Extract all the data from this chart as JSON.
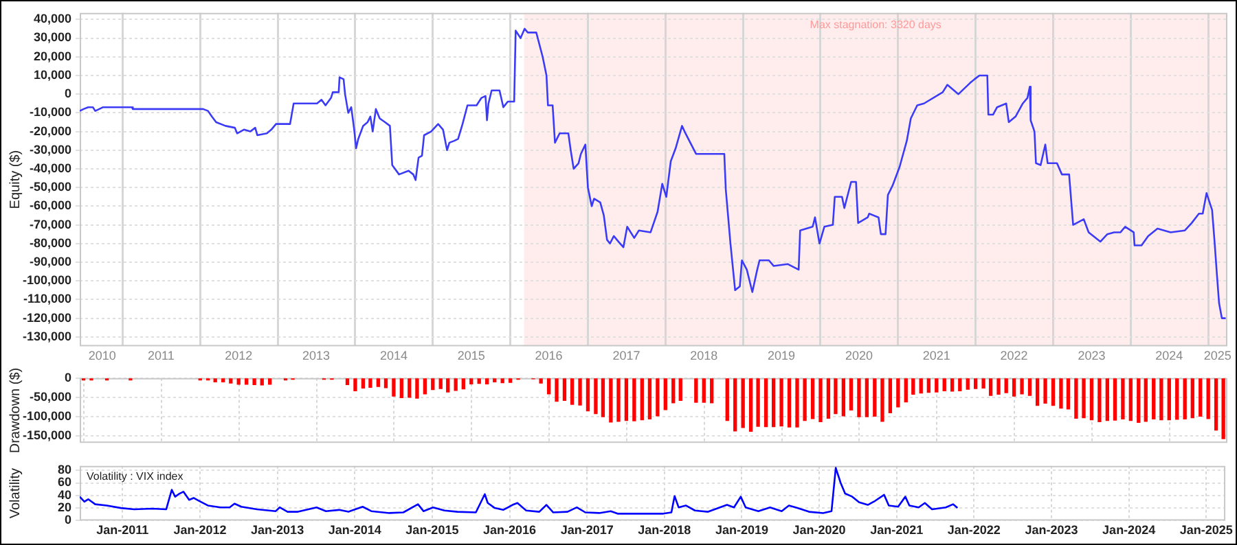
{
  "chart_data": [
    {
      "type": "line",
      "ylabel": "Equity ($)",
      "marker": "none",
      "legend": false,
      "grid": true,
      "x": [
        "2010-06-13",
        "2010-07-01",
        "2010-07-23",
        "2010-08-14",
        "2010-08-25",
        "2010-09-13",
        "2010-10-01",
        "2011-02-14",
        "2011-02-18",
        "2012-01-15",
        "2012-02-07",
        "2012-02-25",
        "2012-03-17",
        "2012-04-30",
        "2012-06-13",
        "2012-06-24",
        "2012-07-26",
        "2012-08-25",
        "2012-09-17",
        "2012-09-27",
        "2012-11-11",
        "2012-12-02",
        "2012-12-24",
        "2013-02-28",
        "2013-03-17",
        "2013-07-05",
        "2013-07-26",
        "2013-08-14",
        "2013-09-09",
        "2013-09-17",
        "2013-10-15",
        "2013-10-19",
        "2013-11-07",
        "2013-11-14",
        "2013-11-29",
        "2013-12-13",
        "2013-12-27",
        "2014-01-05",
        "2014-01-15",
        "2014-02-07",
        "2014-02-28",
        "2014-03-13",
        "2014-03-24",
        "2014-04-08",
        "2014-04-26",
        "2014-05-21",
        "2014-06-13",
        "2014-06-24",
        "2014-07-26",
        "2014-09-09",
        "2014-10-01",
        "2014-10-12",
        "2014-10-26",
        "2014-11-11",
        "2014-11-21",
        "2014-12-24",
        "2015-01-26",
        "2015-02-18",
        "2015-03-09",
        "2015-03-20",
        "2015-04-12",
        "2015-04-30",
        "2015-05-21",
        "2015-06-13",
        "2015-07-26",
        "2015-08-18",
        "2015-09-06",
        "2015-09-13",
        "2015-09-20",
        "2015-10-05",
        "2015-11-11",
        "2015-11-29",
        "2015-12-20",
        "2016-01-19",
        "2016-01-26",
        "2016-02-18",
        "2016-03-09",
        "2016-03-24",
        "2016-05-03",
        "2016-06-02",
        "2016-06-20",
        "2016-06-27",
        "2016-07-19",
        "2016-07-30",
        "2016-08-21",
        "2016-10-01",
        "2016-10-12",
        "2016-10-26",
        "2016-11-18",
        "2016-11-29",
        "2016-12-20",
        "2017-01-01",
        "2017-01-19",
        "2017-01-30",
        "2017-02-28",
        "2017-03-17",
        "2017-04-01",
        "2017-04-15",
        "2017-05-03",
        "2017-05-25",
        "2017-06-17",
        "2017-07-05",
        "2017-08-07",
        "2017-08-29",
        "2017-10-23",
        "2017-11-25",
        "2017-12-17",
        "2018-01-05",
        "2018-01-26",
        "2018-02-18",
        "2018-03-20",
        "2018-04-01",
        "2018-05-25",
        "2018-07-26",
        "2018-10-05",
        "2018-10-12",
        "2018-11-03",
        "2018-11-25",
        "2018-12-17",
        "2018-12-27",
        "2019-01-19",
        "2019-02-14",
        "2019-03-09",
        "2019-03-20",
        "2019-05-03",
        "2019-05-25",
        "2019-07-30",
        "2019-09-20",
        "2019-09-27",
        "2019-11-25",
        "2019-12-06",
        "2019-12-27",
        "2020-01-19",
        "2020-02-28",
        "2020-03-09",
        "2020-04-12",
        "2020-04-23",
        "2020-05-25",
        "2020-06-17",
        "2020-06-27",
        "2020-08-11",
        "2020-08-18",
        "2020-10-01",
        "2020-10-12",
        "2020-11-03",
        "2020-11-14",
        "2020-12-06",
        "2021-01-08",
        "2021-02-11",
        "2021-03-02",
        "2021-04-01",
        "2021-05-03",
        "2021-07-30",
        "2021-08-21",
        "2021-10-12",
        "2021-12-06",
        "2021-12-27",
        "2022-01-19",
        "2022-02-25",
        "2022-03-02",
        "2022-03-24",
        "2022-04-12",
        "2022-05-25",
        "2022-06-06",
        "2022-07-08",
        "2022-08-11",
        "2022-09-02",
        "2022-09-13",
        "2022-09-17",
        "2022-10-05",
        "2022-10-12",
        "2022-11-03",
        "2022-11-25",
        "2022-12-06",
        "2023-01-19",
        "2023-02-11",
        "2023-03-17",
        "2023-04-05",
        "2023-05-25",
        "2023-06-17",
        "2023-08-11",
        "2023-09-13",
        "2023-10-15",
        "2023-11-14",
        "2023-12-06",
        "2024-01-15",
        "2024-01-19",
        "2024-02-21",
        "2024-03-24",
        "2024-05-07",
        "2024-07-08",
        "2024-09-13",
        "2024-10-15",
        "2024-11-18",
        "2024-12-06",
        "2024-12-24",
        "2025-01-19",
        "2025-01-30",
        "2025-02-11",
        "2025-02-21",
        "2025-03-06",
        "2025-03-24"
      ],
      "series": [
        {
          "color": "#3b3bf5",
          "values": [
            -9000,
            -8000,
            -7000,
            -7000,
            -9000,
            -8000,
            -7000,
            -7000,
            -8000,
            -8000,
            -9000,
            -12000,
            -15000,
            -17000,
            -18000,
            -21000,
            -19000,
            -20000,
            -18000,
            -22000,
            -21000,
            -19000,
            -16000,
            -16000,
            -5000,
            -5000,
            -3000,
            -6000,
            -2000,
            1000,
            1000,
            9000,
            8000,
            0,
            -10000,
            -7000,
            -19000,
            -29000,
            -24000,
            -17000,
            -15000,
            -12000,
            -20000,
            -8000,
            -13000,
            -15000,
            -17000,
            -38000,
            -43000,
            -41000,
            -43000,
            -46000,
            -34000,
            -33000,
            -22000,
            -20000,
            -16000,
            -19000,
            -30000,
            -26000,
            -25000,
            -24000,
            -16000,
            -6000,
            -6000,
            -2000,
            -1000,
            -14000,
            -5000,
            2000,
            2000,
            -7000,
            -4000,
            -4000,
            34000,
            30000,
            35000,
            33000,
            33000,
            20000,
            10000,
            -6000,
            -6000,
            -26000,
            -21000,
            -21000,
            -30000,
            -40000,
            -37000,
            -32000,
            -27000,
            -50000,
            -60000,
            -56000,
            -58000,
            -65000,
            -78000,
            -80000,
            -76000,
            -79000,
            -82000,
            -71000,
            -77000,
            -73000,
            -74000,
            -63000,
            -48000,
            -55000,
            -36000,
            -29000,
            -17000,
            -20000,
            -32000,
            -32000,
            -32000,
            -51000,
            -80000,
            -105000,
            -103000,
            -89000,
            -94000,
            -106000,
            -94000,
            -89000,
            -89000,
            -92000,
            -91000,
            -94000,
            -73000,
            -71000,
            -66000,
            -80000,
            -71000,
            -70000,
            -55000,
            -55000,
            -61000,
            -47000,
            -47000,
            -69000,
            -66000,
            -64000,
            -66000,
            -75000,
            -75000,
            -54000,
            -49000,
            -39000,
            -25000,
            -13000,
            -6000,
            -5000,
            1000,
            5000,
            0,
            6000,
            8000,
            10000,
            10000,
            -11000,
            -11000,
            -7000,
            -5000,
            -15000,
            -12000,
            -5000,
            -2000,
            4000,
            -14000,
            -20000,
            -37000,
            -38000,
            -27000,
            -37000,
            -37000,
            -43000,
            -43000,
            -70000,
            -67000,
            -74000,
            -79000,
            -75000,
            -74000,
            -74000,
            -71000,
            -74000,
            -81000,
            -81000,
            -76000,
            -72000,
            -74000,
            -73000,
            -69000,
            -64000,
            -64000,
            -53000,
            -62000,
            -78000,
            -97000,
            -112000,
            -120000,
            -120000
          ]
        }
      ],
      "xlim": [
        "2010-06-13",
        "2025-04-01"
      ],
      "xticks": [
        {
          "value": "2010-09-27",
          "label": "2010"
        },
        {
          "value": "2011-01-01",
          "label": null
        },
        {
          "value": "2011-07-01",
          "label": "2011"
        },
        {
          "value": "2012-01-01",
          "label": null
        },
        {
          "value": "2012-07-01",
          "label": "2012"
        },
        {
          "value": "2013-01-01",
          "label": null
        },
        {
          "value": "2013-07-01",
          "label": "2013"
        },
        {
          "value": "2014-01-01",
          "label": null
        },
        {
          "value": "2014-07-01",
          "label": "2014"
        },
        {
          "value": "2015-01-01",
          "label": null
        },
        {
          "value": "2015-07-01",
          "label": "2015"
        },
        {
          "value": "2016-01-01",
          "label": null
        },
        {
          "value": "2016-07-01",
          "label": "2016"
        },
        {
          "value": "2017-01-01",
          "label": null
        },
        {
          "value": "2017-07-01",
          "label": "2017"
        },
        {
          "value": "2018-01-01",
          "label": null
        },
        {
          "value": "2018-07-01",
          "label": "2018"
        },
        {
          "value": "2019-01-01",
          "label": null
        },
        {
          "value": "2019-07-01",
          "label": "2019"
        },
        {
          "value": "2020-01-01",
          "label": null
        },
        {
          "value": "2020-07-01",
          "label": "2020"
        },
        {
          "value": "2021-01-01",
          "label": null
        },
        {
          "value": "2021-07-01",
          "label": "2021"
        },
        {
          "value": "2022-01-01",
          "label": null
        },
        {
          "value": "2022-07-01",
          "label": "2022"
        },
        {
          "value": "2023-01-01",
          "label": null
        },
        {
          "value": "2023-07-01",
          "label": "2023"
        },
        {
          "value": "2024-01-01",
          "label": null
        },
        {
          "value": "2024-07-01",
          "label": "2024"
        },
        {
          "value": "2025-01-01",
          "label": null
        },
        {
          "value": "2025-02-14",
          "label": "2025"
        }
      ],
      "ylim": [
        -135000,
        43500
      ],
      "yticks": [
        {
          "value": -130000,
          "label": "-130,000"
        },
        {
          "value": -120000,
          "label": "-120,000"
        },
        {
          "value": -110000,
          "label": "-110,000"
        },
        {
          "value": -100000,
          "label": "-100,000"
        },
        {
          "value": -90000,
          "label": "-90,000"
        },
        {
          "value": -80000,
          "label": "-80,000"
        },
        {
          "value": -70000,
          "label": "-70,000"
        },
        {
          "value": -60000,
          "label": "-60,000"
        },
        {
          "value": -50000,
          "label": "-50,000"
        },
        {
          "value": -40000,
          "label": "-40,000"
        },
        {
          "value": -30000,
          "label": "-30,000"
        },
        {
          "value": -20000,
          "label": "-20,000"
        },
        {
          "value": -10000,
          "label": "-10,000"
        },
        {
          "value": 0,
          "label": "0"
        },
        {
          "value": 10000,
          "label": "10,000"
        },
        {
          "value": 20000,
          "label": "20,000"
        },
        {
          "value": 30000,
          "label": "30,000"
        },
        {
          "value": 40000,
          "label": "40,000"
        }
      ],
      "bands": [
        {
          "axis": "x",
          "from": "2016-03-06",
          "to": "2025-04-01",
          "label": "Max stagnation: 3320 days",
          "color": "#ffeded"
        }
      ]
    },
    {
      "type": "bar",
      "ylabel": "Drawdown ($)",
      "color": "#ff0000",
      "legend": false,
      "grid": true,
      "tick_labels": "y",
      "x": [
        "2010-07-01",
        "2010-08-07",
        "2010-09-13",
        "2010-10-19",
        "2010-11-25",
        "2011-01-01",
        "2011-02-07",
        "2011-03-13",
        "2011-04-19",
        "2011-05-25",
        "2011-07-01",
        "2011-08-07",
        "2011-09-13",
        "2011-10-19",
        "2011-11-25",
        "2012-01-01",
        "2012-02-07",
        "2012-03-13",
        "2012-04-19",
        "2012-05-25",
        "2012-07-01",
        "2012-08-07",
        "2012-09-13",
        "2012-10-19",
        "2012-11-25",
        "2013-01-01",
        "2013-02-07",
        "2013-03-13",
        "2013-04-19",
        "2013-05-25",
        "2013-07-01",
        "2013-08-07",
        "2013-09-13",
        "2013-10-19",
        "2013-11-25",
        "2014-01-01",
        "2014-02-07",
        "2014-03-13",
        "2014-04-19",
        "2014-05-25",
        "2014-07-01",
        "2014-08-07",
        "2014-09-13",
        "2014-10-19",
        "2014-11-25",
        "2015-01-01",
        "2015-02-07",
        "2015-03-13",
        "2015-04-19",
        "2015-05-25",
        "2015-07-01",
        "2015-08-07",
        "2015-09-13",
        "2015-10-19",
        "2015-11-25",
        "2016-01-01",
        "2016-02-07",
        "2016-03-13",
        "2016-04-19",
        "2016-05-25",
        "2016-07-01",
        "2016-08-07",
        "2016-09-13",
        "2016-10-19",
        "2016-11-25",
        "2017-01-01",
        "2017-02-07",
        "2017-03-13",
        "2017-04-19",
        "2017-05-25",
        "2017-07-01",
        "2017-08-07",
        "2017-09-13",
        "2017-10-19",
        "2017-11-25",
        "2018-01-01",
        "2018-02-07",
        "2018-03-13",
        "2018-04-19",
        "2018-05-25",
        "2018-07-01",
        "2018-08-07",
        "2018-09-13",
        "2018-10-19",
        "2018-11-25",
        "2019-01-01",
        "2019-02-07",
        "2019-03-13",
        "2019-04-19",
        "2019-05-25",
        "2019-07-01",
        "2019-08-07",
        "2019-09-13",
        "2019-10-19",
        "2019-11-25",
        "2020-01-01",
        "2020-02-07",
        "2020-03-13",
        "2020-04-19",
        "2020-05-25",
        "2020-07-01",
        "2020-08-07",
        "2020-09-13",
        "2020-10-19",
        "2020-11-25",
        "2021-01-01",
        "2021-02-07",
        "2021-03-13",
        "2021-04-19",
        "2021-05-25",
        "2021-07-01",
        "2021-08-07",
        "2021-09-13",
        "2021-10-19",
        "2021-11-25",
        "2022-01-01",
        "2022-02-07",
        "2022-03-13",
        "2022-04-19",
        "2022-05-25",
        "2022-07-01",
        "2022-08-07",
        "2022-09-13",
        "2022-10-19",
        "2022-11-25",
        "2023-01-01",
        "2023-02-07",
        "2023-03-13",
        "2023-04-19",
        "2023-05-25",
        "2023-07-01",
        "2023-08-07",
        "2023-09-13",
        "2023-10-19",
        "2023-11-25",
        "2024-01-01",
        "2024-02-07",
        "2024-03-13",
        "2024-04-19",
        "2024-05-25",
        "2024-07-01",
        "2024-08-07",
        "2024-09-13",
        "2024-10-19",
        "2024-11-25",
        "2025-01-01",
        "2025-02-07",
        "2025-03-13"
      ],
      "values": [
        -5000,
        -5000,
        null,
        -5000,
        null,
        null,
        -5000,
        null,
        null,
        null,
        null,
        null,
        null,
        null,
        null,
        -5000,
        -5000,
        -10000,
        -10000,
        -13000,
        -16000,
        -16000,
        -17000,
        -18000,
        -16000,
        null,
        -5000,
        -3000,
        null,
        null,
        null,
        -3000,
        -3000,
        null,
        -17000,
        -33000,
        -26000,
        -24000,
        -22000,
        -25000,
        -47000,
        -51000,
        -50000,
        -52000,
        -41000,
        -30000,
        -27000,
        -36000,
        -32000,
        -28000,
        -15000,
        -14000,
        -15000,
        -10000,
        -12000,
        -11000,
        -3000,
        null,
        -2000,
        -13000,
        -41000,
        -60000,
        -58000,
        -68000,
        -70000,
        -85000,
        -92000,
        -100000,
        -114000,
        -112000,
        -110000,
        -111000,
        -108000,
        -106000,
        -98000,
        -82000,
        -64000,
        -58000,
        null,
        -63000,
        -63000,
        -64000,
        null,
        -110000,
        -137000,
        -128000,
        -138000,
        -125000,
        -126000,
        -126000,
        -124000,
        -127000,
        -127000,
        -110000,
        -105000,
        -113000,
        -104000,
        -92000,
        -98000,
        -83000,
        -100000,
        -100000,
        -99000,
        -112000,
        -90000,
        -75000,
        -62000,
        -42000,
        -39000,
        -37000,
        -36000,
        -33000,
        -34000,
        -33000,
        -29000,
        -27000,
        -26000,
        -45000,
        -42000,
        -38000,
        -47000,
        -41000,
        -45000,
        -71000,
        -65000,
        -71000,
        -78000,
        -80000,
        -104000,
        -103000,
        -108000,
        -113000,
        -110000,
        -109000,
        -106000,
        -110000,
        -115000,
        -112000,
        -106000,
        -108000,
        -108000,
        -107000,
        -106000,
        -103000,
        -99000,
        -105000,
        -135000,
        -157000
      ],
      "xlim": [
        "2010-06-13",
        "2025-04-01"
      ],
      "xticks": [
        "2011-01-01",
        "2012-01-01",
        "2013-01-01",
        "2014-01-01",
        "2015-01-01",
        "2016-01-01",
        "2017-01-01",
        "2018-01-01",
        "2019-01-01",
        "2020-01-01",
        "2021-01-01",
        "2022-01-01",
        "2023-01-01",
        "2024-01-01",
        "2025-01-01"
      ],
      "ylim": [
        -168000,
        0
      ],
      "yticks": [
        {
          "value": -150000,
          "label": "-150,000"
        },
        {
          "value": -100000,
          "label": "-100,000"
        },
        {
          "value": -50000,
          "label": "-50,000"
        },
        {
          "value": 0,
          "label": "0"
        }
      ]
    },
    {
      "type": "line",
      "title": "Volatility : VIX index",
      "ylabel": "Volatility",
      "marker": "none",
      "legend": false,
      "grid": true,
      "x": [
        "2010-06-13",
        "2010-07-05",
        "2010-07-23",
        "2010-08-25",
        "2010-10-19",
        "2010-12-24",
        "2011-02-25",
        "2011-05-21",
        "2011-07-26",
        "2011-08-21",
        "2011-09-06",
        "2011-09-27",
        "2011-10-15",
        "2011-11-11",
        "2011-12-02",
        "2011-12-24",
        "2012-02-07",
        "2012-04-08",
        "2012-05-21",
        "2012-06-13",
        "2012-07-15",
        "2012-09-27",
        "2012-12-24",
        "2013-01-12",
        "2013-02-18",
        "2013-04-08",
        "2013-07-05",
        "2013-08-18",
        "2013-10-19",
        "2013-12-02",
        "2014-02-07",
        "2014-03-20",
        "2014-06-13",
        "2014-08-18",
        "2014-10-26",
        "2014-11-21",
        "2015-01-05",
        "2015-02-28",
        "2015-04-30",
        "2015-07-26",
        "2015-09-06",
        "2015-09-20",
        "2015-10-23",
        "2015-12-02",
        "2016-01-15",
        "2016-02-07",
        "2016-03-20",
        "2016-05-21",
        "2016-06-24",
        "2016-07-26",
        "2016-10-01",
        "2016-11-14",
        "2016-12-24",
        "2017-02-28",
        "2017-04-23",
        "2017-05-25",
        "2017-09-09",
        "2017-12-27",
        "2018-02-03",
        "2018-02-18",
        "2018-03-09",
        "2018-04-12",
        "2018-05-25",
        "2018-07-26",
        "2018-10-23",
        "2018-11-25",
        "2018-12-27",
        "2019-01-19",
        "2019-03-20",
        "2019-05-14",
        "2019-07-08",
        "2019-08-11",
        "2019-09-20",
        "2019-11-14",
        "2020-01-19",
        "2020-02-28",
        "2020-03-20",
        "2020-04-12",
        "2020-05-03",
        "2020-06-06",
        "2020-07-08",
        "2020-08-18",
        "2020-09-20",
        "2020-11-03",
        "2020-11-25",
        "2021-01-08",
        "2021-02-11",
        "2021-03-02",
        "2021-04-15",
        "2021-05-14",
        "2021-06-17",
        "2021-08-21",
        "2021-09-24",
        "2021-10-15"
      ],
      "series": [
        {
          "color": "#0000ff",
          "values": [
            38,
            30,
            34,
            26,
            24,
            20,
            18,
            19,
            18,
            49,
            38,
            43,
            46,
            33,
            36,
            32,
            24,
            21,
            21,
            27,
            22,
            18,
            15,
            21,
            14,
            14,
            21,
            15,
            17,
            14,
            22,
            15,
            12,
            13,
            26,
            15,
            21,
            16,
            14,
            13,
            42,
            28,
            20,
            17,
            25,
            28,
            16,
            14,
            25,
            13,
            14,
            21,
            13,
            12,
            15,
            11,
            11,
            11,
            13,
            39,
            21,
            24,
            16,
            14,
            25,
            21,
            38,
            21,
            15,
            21,
            15,
            24,
            20,
            14,
            12,
            15,
            84,
            60,
            43,
            38,
            29,
            25,
            31,
            41,
            24,
            22,
            38,
            24,
            21,
            28,
            18,
            21,
            26,
            20
          ]
        }
      ],
      "xlim": [
        "2010-06-13",
        "2025-04-01"
      ],
      "xticks": [
        {
          "value": "2011-01-01",
          "label": "Jan-2011"
        },
        {
          "value": "2012-01-01",
          "label": "Jan-2012"
        },
        {
          "value": "2013-01-01",
          "label": "Jan-2013"
        },
        {
          "value": "2014-01-01",
          "label": "Jan-2014"
        },
        {
          "value": "2015-01-01",
          "label": "Jan-2015"
        },
        {
          "value": "2016-01-01",
          "label": "Jan-2016"
        },
        {
          "value": "2017-01-01",
          "label": "Jan-2017"
        },
        {
          "value": "2018-01-01",
          "label": "Jan-2018"
        },
        {
          "value": "2019-01-01",
          "label": "Jan-2019"
        },
        {
          "value": "2020-01-01",
          "label": "Jan-2020"
        },
        {
          "value": "2021-01-01",
          "label": "Jan-2021"
        },
        {
          "value": "2022-01-01",
          "label": "Jan-2022"
        },
        {
          "value": "2023-01-01",
          "label": "Jan-2023"
        },
        {
          "value": "2024-01-01",
          "label": "Jan-2024"
        },
        {
          "value": "2025-01-01",
          "label": "Jan-2025"
        }
      ],
      "ylim": [
        0,
        87
      ],
      "yticks": [
        0,
        20,
        40,
        60,
        80
      ]
    }
  ]
}
